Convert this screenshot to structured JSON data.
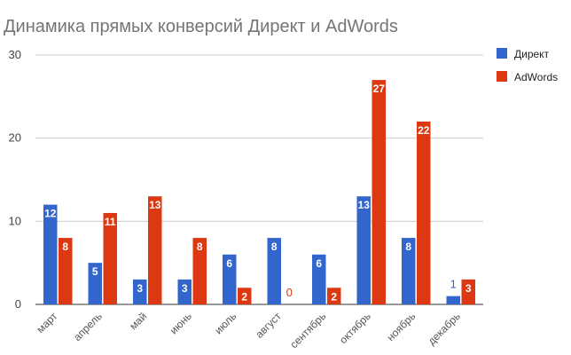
{
  "chart_data": {
    "type": "bar",
    "title": "Динамика прямых конверсий Директ и AdWords",
    "categories": [
      "март",
      "апрель",
      "май",
      "июнь",
      "июль",
      "август",
      "сентябрь",
      "октябрь",
      "ноябрь",
      "декабрь"
    ],
    "series": [
      {
        "name": "Директ",
        "color": "#3366cc",
        "values": [
          12,
          5,
          3,
          3,
          6,
          8,
          6,
          13,
          8,
          1
        ]
      },
      {
        "name": "AdWords",
        "color": "#dc3912",
        "values": [
          8,
          11,
          13,
          8,
          2,
          0,
          2,
          27,
          22,
          3
        ]
      }
    ],
    "y_ticks": [
      "0",
      "10",
      "20",
      "30"
    ],
    "ylim": [
      0,
      30
    ],
    "xlabel": "",
    "ylabel": "",
    "grid": true,
    "legend_position": "right"
  }
}
